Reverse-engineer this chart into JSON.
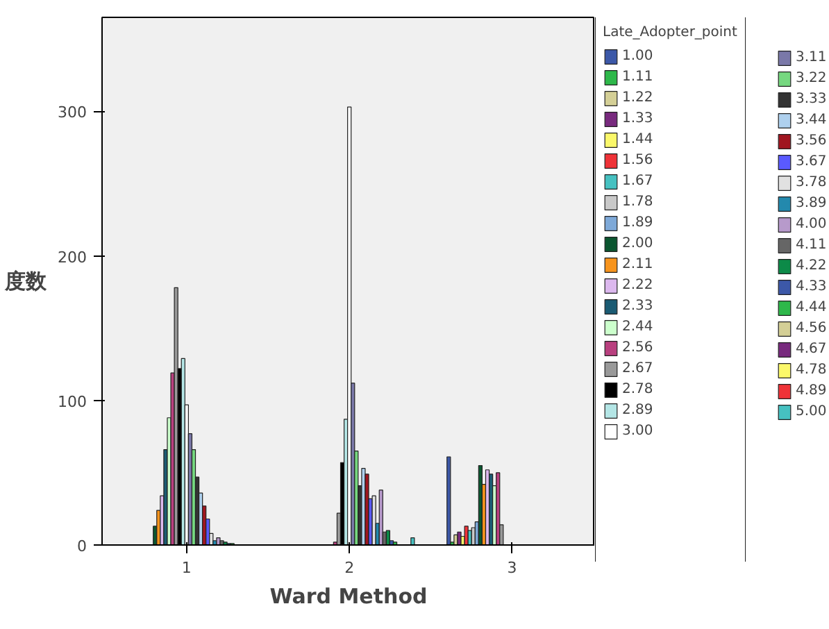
{
  "chart_data": {
    "type": "bar",
    "xlabel": "Ward Method",
    "ylabel": "度数",
    "legend_title": "Late_Adopter_point",
    "categories": [
      "1",
      "2",
      "3"
    ],
    "ylim": [
      0,
      365
    ],
    "yticks": [
      0,
      100,
      200,
      300
    ],
    "grid": false,
    "legend": "right",
    "series": [
      {
        "name": "1.00",
        "color": "#3c58a8",
        "values": [
          null,
          null,
          61
        ]
      },
      {
        "name": "1.11",
        "color": "#2eb84a",
        "values": [
          null,
          null,
          2
        ]
      },
      {
        "name": "1.22",
        "color": "#d4cf96",
        "values": [
          null,
          null,
          7
        ]
      },
      {
        "name": "1.33",
        "color": "#782a7e",
        "values": [
          null,
          null,
          9
        ]
      },
      {
        "name": "1.44",
        "color": "#fbf86a",
        "values": [
          null,
          null,
          6
        ]
      },
      {
        "name": "1.56",
        "color": "#ef3338",
        "values": [
          null,
          null,
          13
        ]
      },
      {
        "name": "1.67",
        "color": "#46c1c1",
        "values": [
          null,
          null,
          10
        ]
      },
      {
        "name": "1.78",
        "color": "#c9c9c9",
        "values": [
          null,
          null,
          12
        ]
      },
      {
        "name": "1.89",
        "color": "#7ea9d8",
        "values": [
          null,
          null,
          16
        ]
      },
      {
        "name": "2.00",
        "color": "#0b5630",
        "values": [
          13,
          null,
          55
        ]
      },
      {
        "name": "2.11",
        "color": "#f7941d",
        "values": [
          24,
          null,
          42
        ]
      },
      {
        "name": "2.22",
        "color": "#dcb8ee",
        "values": [
          34,
          null,
          52
        ]
      },
      {
        "name": "2.33",
        "color": "#1b5b73",
        "values": [
          66,
          null,
          49
        ]
      },
      {
        "name": "2.44",
        "color": "#ccffcc",
        "values": [
          88,
          null,
          41
        ]
      },
      {
        "name": "2.56",
        "color": "#b9407f",
        "values": [
          119,
          2,
          50
        ]
      },
      {
        "name": "2.67",
        "color": "#999999",
        "values": [
          178,
          22,
          14
        ]
      },
      {
        "name": "2.78",
        "color": "#000000",
        "values": [
          122,
          57,
          null
        ]
      },
      {
        "name": "2.89",
        "color": "#b4e6e6",
        "values": [
          129,
          87,
          null
        ]
      },
      {
        "name": "3.00",
        "color": "#ffffff",
        "values": [
          97,
          303,
          null
        ]
      },
      {
        "name": "3.11",
        "color": "#7a78a8",
        "values": [
          77,
          112,
          null
        ]
      },
      {
        "name": "3.22",
        "color": "#76d880",
        "values": [
          66,
          65,
          null
        ]
      },
      {
        "name": "3.33",
        "color": "#333333",
        "values": [
          47,
          41,
          null
        ]
      },
      {
        "name": "3.44",
        "color": "#aed0ee",
        "values": [
          36,
          53,
          null
        ]
      },
      {
        "name": "3.56",
        "color": "#a01620",
        "values": [
          27,
          49,
          null
        ]
      },
      {
        "name": "3.67",
        "color": "#5a5aff",
        "values": [
          18,
          32,
          null
        ]
      },
      {
        "name": "3.78",
        "color": "#e1e1e1",
        "values": [
          8,
          34,
          null
        ]
      },
      {
        "name": "3.89",
        "color": "#2389ad",
        "values": [
          3,
          15,
          null
        ]
      },
      {
        "name": "4.00",
        "color": "#b79acb",
        "values": [
          5,
          38,
          null
        ]
      },
      {
        "name": "4.11",
        "color": "#666666",
        "values": [
          3,
          9,
          null
        ]
      },
      {
        "name": "4.22",
        "color": "#0c8a48",
        "values": [
          2,
          10,
          null
        ]
      },
      {
        "name": "4.33",
        "color": "#3c58a8",
        "values": [
          1,
          3,
          null
        ]
      },
      {
        "name": "4.44",
        "color": "#2eb84a",
        "values": [
          1,
          2,
          null
        ]
      },
      {
        "name": "4.56",
        "color": "#d4cf96",
        "values": [
          null,
          null,
          null
        ]
      },
      {
        "name": "4.67",
        "color": "#782a7e",
        "values": [
          null,
          null,
          null
        ]
      },
      {
        "name": "4.78",
        "color": "#fbf86a",
        "values": [
          null,
          null,
          null
        ]
      },
      {
        "name": "4.89",
        "color": "#ef3338",
        "values": [
          null,
          null,
          null
        ]
      },
      {
        "name": "5.00",
        "color": "#46c1c1",
        "values": [
          null,
          5,
          null
        ]
      }
    ]
  }
}
